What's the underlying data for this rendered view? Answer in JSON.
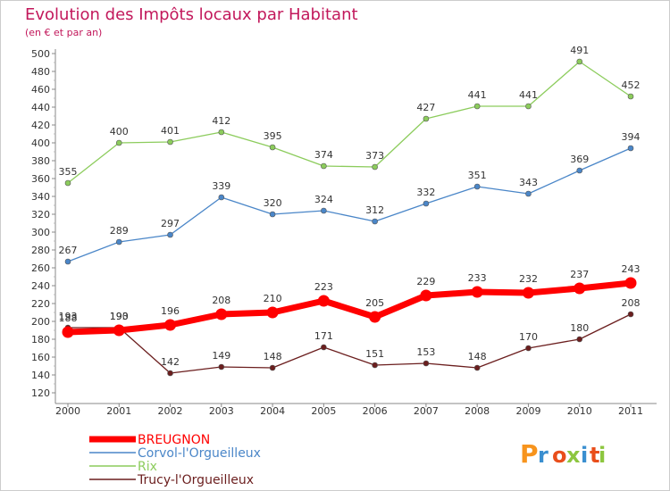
{
  "header": {
    "title": "Evolution des Impôts locaux par Habitant",
    "subtitle": "(en € et par an)"
  },
  "logo": {
    "text": "Proxiti"
  },
  "chart_data": {
    "type": "line",
    "x": [
      "2000",
      "2001",
      "2002",
      "2003",
      "2004",
      "2005",
      "2006",
      "2007",
      "2008",
      "2009",
      "2010",
      "2011"
    ],
    "ylim": [
      120,
      500
    ],
    "yticks": [
      120,
      140,
      160,
      180,
      200,
      220,
      240,
      260,
      280,
      300,
      320,
      340,
      360,
      380,
      400,
      420,
      440,
      460,
      480,
      500
    ],
    "grid": false,
    "legend_position": "bottom-left",
    "series": [
      {
        "name": "Trucy-l'Orgueilleux",
        "color": "#6b1e1e",
        "values": [
          193,
          193,
          142,
          149,
          148,
          171,
          151,
          153,
          148,
          170,
          180,
          208
        ]
      },
      {
        "name": "Corvol-l'Orgueilleux",
        "color": "#4a86c8",
        "values": [
          267,
          289,
          297,
          339,
          320,
          324,
          312,
          332,
          351,
          343,
          369,
          394
        ]
      },
      {
        "name": "Rix",
        "color": "#8ccc5c",
        "values": [
          355,
          400,
          401,
          412,
          395,
          374,
          373,
          427,
          441,
          441,
          491,
          452
        ]
      },
      {
        "name": "BREUGNON",
        "color": "#ff0000",
        "values": [
          188,
          190,
          196,
          208,
          210,
          223,
          205,
          229,
          233,
          232,
          237,
          243
        ]
      }
    ]
  }
}
